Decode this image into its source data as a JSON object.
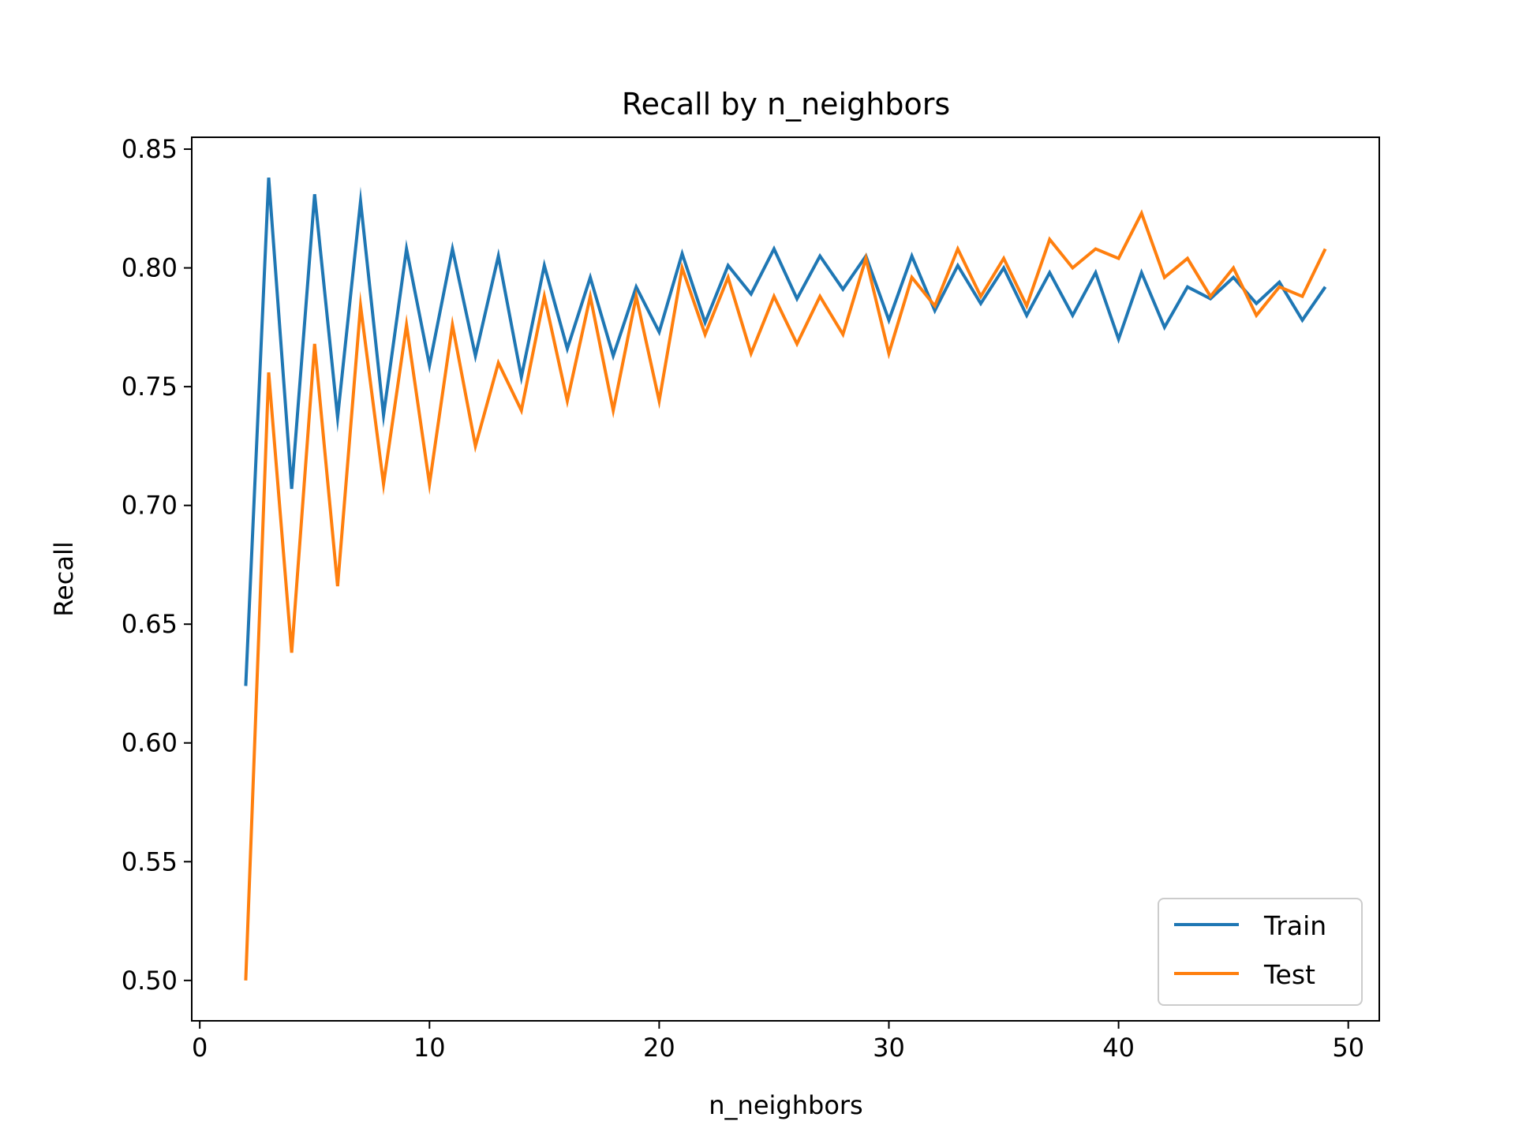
{
  "chart_data": {
    "type": "line",
    "title": "Recall by n_neighbors",
    "xlabel": "n_neighbors",
    "ylabel": "Recall",
    "xlim": [
      -0.35,
      51.35
    ],
    "ylim": [
      0.483,
      0.855
    ],
    "xticks": [
      0,
      10,
      20,
      30,
      40,
      50
    ],
    "yticks": [
      0.5,
      0.55,
      0.6,
      0.65,
      0.7,
      0.75,
      0.8,
      0.85
    ],
    "xtick_labels": [
      "0",
      "10",
      "20",
      "30",
      "40",
      "50"
    ],
    "ytick_labels": [
      "0.50",
      "0.55",
      "0.60",
      "0.65",
      "0.70",
      "0.75",
      "0.80",
      "0.85"
    ],
    "grid": false,
    "legend_position": "lower-right",
    "x": [
      2,
      3,
      4,
      5,
      6,
      7,
      8,
      9,
      10,
      11,
      12,
      13,
      14,
      15,
      16,
      17,
      18,
      19,
      20,
      21,
      22,
      23,
      24,
      25,
      26,
      27,
      28,
      29,
      30,
      31,
      32,
      33,
      34,
      35,
      36,
      37,
      38,
      39,
      40,
      41,
      42,
      43,
      44,
      45,
      46,
      47,
      48,
      49
    ],
    "series": [
      {
        "name": "Train",
        "color": "#1f77b4",
        "values": [
          0.624,
          0.838,
          0.707,
          0.831,
          0.737,
          0.828,
          0.738,
          0.808,
          0.759,
          0.808,
          0.763,
          0.805,
          0.754,
          0.801,
          0.766,
          0.796,
          0.763,
          0.792,
          0.773,
          0.806,
          0.777,
          0.801,
          0.789,
          0.808,
          0.787,
          0.805,
          0.791,
          0.805,
          0.778,
          0.805,
          0.782,
          0.801,
          0.785,
          0.8,
          0.78,
          0.798,
          0.78,
          0.798,
          0.77,
          0.798,
          0.775,
          0.792,
          0.787,
          0.796,
          0.785,
          0.794,
          0.778,
          0.792
        ]
      },
      {
        "name": "Test",
        "color": "#ff7f0e",
        "values": [
          0.5,
          0.756,
          0.638,
          0.768,
          0.666,
          0.784,
          0.709,
          0.776,
          0.709,
          0.776,
          0.725,
          0.76,
          0.74,
          0.788,
          0.744,
          0.788,
          0.74,
          0.788,
          0.744,
          0.8,
          0.772,
          0.796,
          0.764,
          0.788,
          0.768,
          0.788,
          0.772,
          0.804,
          0.764,
          0.796,
          0.784,
          0.808,
          0.788,
          0.804,
          0.784,
          0.812,
          0.8,
          0.808,
          0.804,
          0.823,
          0.796,
          0.804,
          0.788,
          0.8,
          0.78,
          0.792,
          0.788,
          0.808
        ]
      }
    ]
  }
}
